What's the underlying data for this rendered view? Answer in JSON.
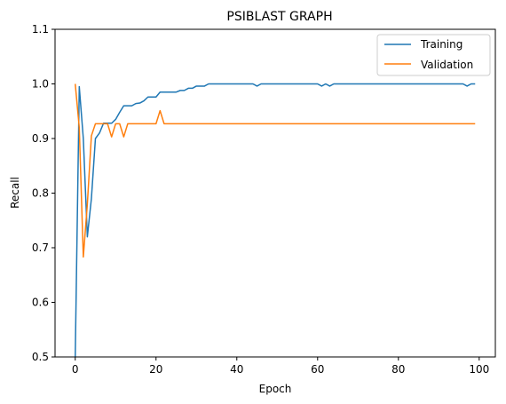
{
  "chart_data": {
    "type": "line",
    "title": "PSIBLAST GRAPH",
    "xlabel": "Epoch",
    "ylabel": "Recall",
    "xlim": [
      -5,
      104
    ],
    "ylim": [
      0.5,
      1.1
    ],
    "xticks": [
      0,
      20,
      40,
      60,
      80,
      100
    ],
    "yticks": [
      0.5,
      0.6,
      0.7,
      0.8,
      0.9,
      1.0,
      1.1
    ],
    "xtick_labels": [
      "0",
      "20",
      "40",
      "60",
      "80",
      "100"
    ],
    "ytick_labels": [
      "0.5",
      "0.6",
      "0.7",
      "0.8",
      "0.9",
      "1.0",
      "1.1"
    ],
    "grid": false,
    "legend_position": "top-right",
    "series": [
      {
        "name": "Training",
        "color": "#1f77b4",
        "x": [
          0,
          1,
          2,
          3,
          4,
          5,
          6,
          7,
          8,
          9,
          10,
          11,
          12,
          13,
          14,
          15,
          16,
          17,
          18,
          19,
          20,
          21,
          22,
          23,
          24,
          25,
          26,
          27,
          28,
          29,
          30,
          31,
          32,
          33,
          34,
          35,
          36,
          37,
          38,
          39,
          40,
          41,
          42,
          43,
          44,
          45,
          46,
          47,
          48,
          49,
          50,
          51,
          52,
          53,
          54,
          55,
          56,
          57,
          58,
          59,
          60,
          61,
          62,
          63,
          64,
          65,
          66,
          67,
          68,
          69,
          70,
          71,
          72,
          73,
          74,
          75,
          76,
          77,
          78,
          79,
          80,
          81,
          82,
          83,
          84,
          85,
          86,
          87,
          88,
          89,
          90,
          91,
          92,
          93,
          94,
          95,
          96,
          97,
          98,
          99
        ],
        "y": [
          0.5,
          0.995,
          0.9,
          0.72,
          0.79,
          0.9,
          0.91,
          0.928,
          0.928,
          0.928,
          0.935,
          0.948,
          0.96,
          0.96,
          0.96,
          0.964,
          0.965,
          0.969,
          0.976,
          0.976,
          0.976,
          0.985,
          0.985,
          0.985,
          0.985,
          0.985,
          0.988,
          0.988,
          0.992,
          0.992,
          0.996,
          0.996,
          0.996,
          1.0,
          1.0,
          1.0,
          1.0,
          1.0,
          1.0,
          1.0,
          1.0,
          1.0,
          1.0,
          1.0,
          1.0,
          0.996,
          1.0,
          1.0,
          1.0,
          1.0,
          1.0,
          1.0,
          1.0,
          1.0,
          1.0,
          1.0,
          1.0,
          1.0,
          1.0,
          1.0,
          1.0,
          0.996,
          1.0,
          0.996,
          1.0,
          1.0,
          1.0,
          1.0,
          1.0,
          1.0,
          1.0,
          1.0,
          1.0,
          1.0,
          1.0,
          1.0,
          1.0,
          1.0,
          1.0,
          1.0,
          1.0,
          1.0,
          1.0,
          1.0,
          1.0,
          1.0,
          1.0,
          1.0,
          1.0,
          1.0,
          1.0,
          1.0,
          1.0,
          1.0,
          1.0,
          1.0,
          1.0,
          0.996,
          1.0,
          1.0
        ]
      },
      {
        "name": "Validation",
        "color": "#ff7f0e",
        "x": [
          0,
          1,
          2,
          3,
          4,
          5,
          6,
          7,
          8,
          9,
          10,
          11,
          12,
          13,
          14,
          15,
          16,
          17,
          18,
          19,
          20,
          21,
          22,
          23,
          24,
          25,
          26,
          27,
          28,
          29,
          30,
          31,
          32,
          33,
          34,
          35,
          36,
          37,
          38,
          39,
          40,
          41,
          42,
          43,
          44,
          45,
          46,
          47,
          48,
          49,
          50,
          51,
          52,
          53,
          54,
          55,
          56,
          57,
          58,
          59,
          60,
          61,
          62,
          63,
          64,
          65,
          66,
          67,
          68,
          69,
          70,
          71,
          72,
          73,
          74,
          75,
          76,
          77,
          78,
          79,
          80,
          81,
          82,
          83,
          84,
          85,
          86,
          87,
          88,
          89,
          90,
          91,
          92,
          93,
          94,
          95,
          96,
          97,
          98,
          99
        ],
        "y": [
          1.0,
          0.92,
          0.683,
          0.78,
          0.905,
          0.927,
          0.927,
          0.927,
          0.927,
          0.903,
          0.927,
          0.927,
          0.903,
          0.927,
          0.927,
          0.927,
          0.927,
          0.927,
          0.927,
          0.927,
          0.927,
          0.951,
          0.927,
          0.927,
          0.927,
          0.927,
          0.927,
          0.927,
          0.927,
          0.927,
          0.927,
          0.927,
          0.927,
          0.927,
          0.927,
          0.927,
          0.927,
          0.927,
          0.927,
          0.927,
          0.927,
          0.927,
          0.927,
          0.927,
          0.927,
          0.927,
          0.927,
          0.927,
          0.927,
          0.927,
          0.927,
          0.927,
          0.927,
          0.927,
          0.927,
          0.927,
          0.927,
          0.927,
          0.927,
          0.927,
          0.927,
          0.927,
          0.927,
          0.927,
          0.927,
          0.927,
          0.927,
          0.927,
          0.927,
          0.927,
          0.927,
          0.927,
          0.927,
          0.927,
          0.927,
          0.927,
          0.927,
          0.927,
          0.927,
          0.927,
          0.927,
          0.927,
          0.927,
          0.927,
          0.927,
          0.927,
          0.927,
          0.927,
          0.927,
          0.927,
          0.927,
          0.927,
          0.927,
          0.927,
          0.927,
          0.927,
          0.927,
          0.927,
          0.927,
          0.927
        ]
      }
    ]
  }
}
